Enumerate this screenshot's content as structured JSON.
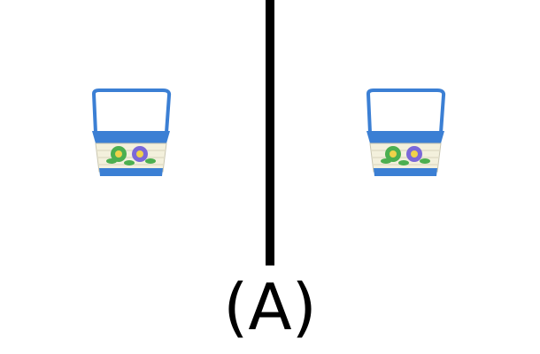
{
  "panel_label": "(A)",
  "colors": {
    "divider": "#000000",
    "basket_blue": "#3b7fd4",
    "basket_cream": "#f3f0dc",
    "flower_green": "#4caf50",
    "flower_purple": "#7b68d8"
  },
  "images": [
    {
      "icon": "basket-icon",
      "side": "left"
    },
    {
      "icon": "basket-icon",
      "side": "right"
    }
  ]
}
